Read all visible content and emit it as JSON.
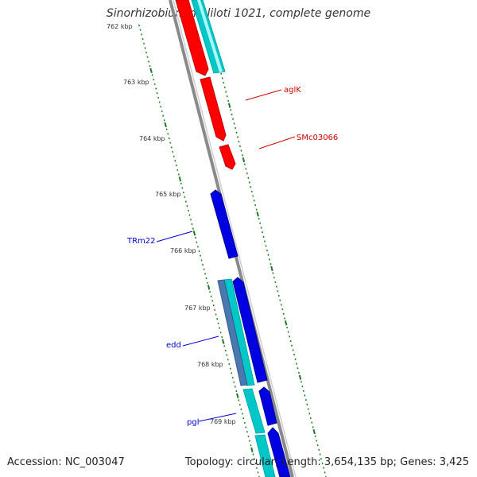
{
  "title": "Sinorhizobium meliloti 1021, complete genome",
  "accession": "Accession: NC_003047",
  "summary": "Topology: circular; Length: 3,654,135 bp; Genes: 3,425",
  "colors": {
    "backbone": "#8a8a8a",
    "cds_forward": "#00c8c8",
    "cds_reverse": "#4a78b0",
    "trna": "#0000e0",
    "gene_highlight": "#ff0000",
    "tick": "#1f7a1f",
    "label_red": "#d00000",
    "label_blue": "#0000cc",
    "tick_label": "#333333"
  },
  "tick_labels": [
    "762 kbp",
    "763 kbp",
    "764 kbp",
    "765 kbp",
    "766 kbp",
    "767 kbp",
    "768 kbp",
    "769 kbp"
  ],
  "gene_labels": [
    {
      "text": "aglK",
      "color": "red"
    },
    {
      "text": "SMc03066",
      "color": "red"
    },
    {
      "text": "TRm22",
      "color": "blue"
    },
    {
      "text": "edd",
      "color": "blue"
    },
    {
      "text": "pgl",
      "color": "blue"
    }
  ]
}
